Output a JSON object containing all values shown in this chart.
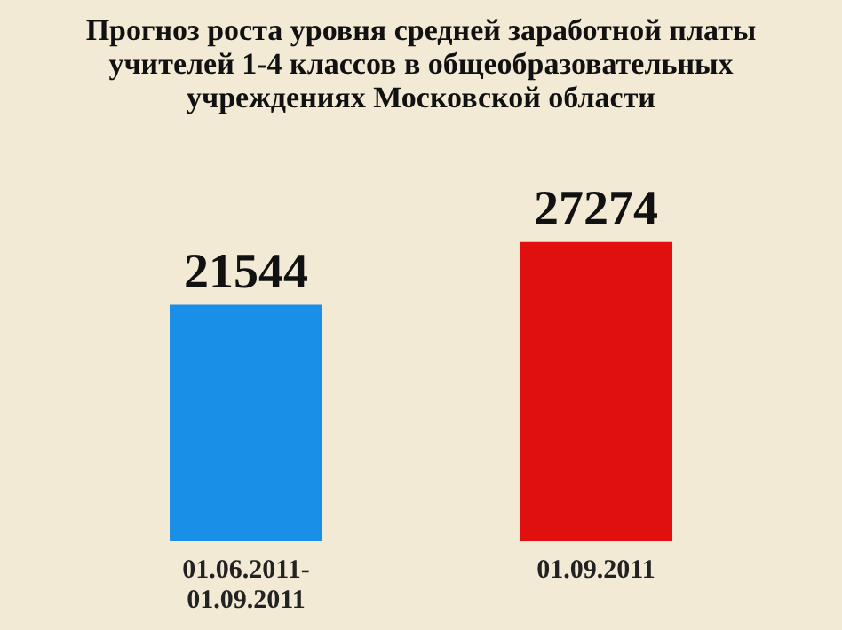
{
  "chart_data": {
    "type": "bar",
    "title": "Прогноз роста уровня средней заработной платы учителей 1-4 классов в общеобразовательных учреждениях Московской области",
    "categories": [
      "01.06.2011- 01.09.2011",
      "01.09.2011"
    ],
    "values": [
      21544,
      27274
    ],
    "colors": [
      "#1a8fe8",
      "#e01010"
    ],
    "data_labels": true
  }
}
